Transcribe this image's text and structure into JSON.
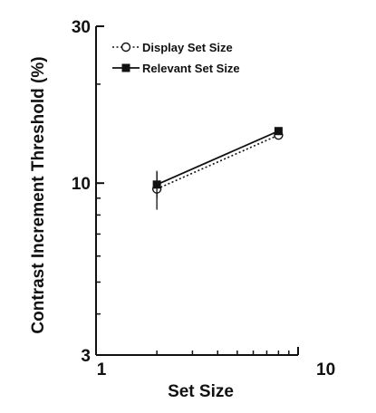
{
  "chart_data": {
    "type": "line",
    "title": "",
    "xlabel": "Set Size",
    "ylabel": "Contrast Increment Threshold (%)",
    "x_scale": "log",
    "y_scale": "log",
    "xlim": [
      1,
      10
    ],
    "ylim": [
      3,
      30
    ],
    "x_ticks": [
      {
        "value": 1,
        "label": "1"
      },
      {
        "value": 10,
        "label": "10"
      }
    ],
    "y_ticks": [
      {
        "value": 3,
        "label": "3"
      },
      {
        "value": 10,
        "label": "10"
      },
      {
        "value": 30,
        "label": "30"
      }
    ],
    "grid": false,
    "legend_position": "top-left",
    "series": [
      {
        "name": "Display Set Size",
        "x": [
          2,
          8
        ],
        "y": [
          9.6,
          14.0
        ],
        "error": [
          1.3,
          0.3
        ],
        "marker": "open-circle",
        "line_style": "dotted",
        "color": "#111111"
      },
      {
        "name": "Relevant Set Size",
        "x": [
          2,
          8
        ],
        "y": [
          9.9,
          14.4
        ],
        "error": [
          0.9,
          0.3
        ],
        "marker": "filled-square",
        "line_style": "solid",
        "color": "#111111"
      }
    ]
  }
}
